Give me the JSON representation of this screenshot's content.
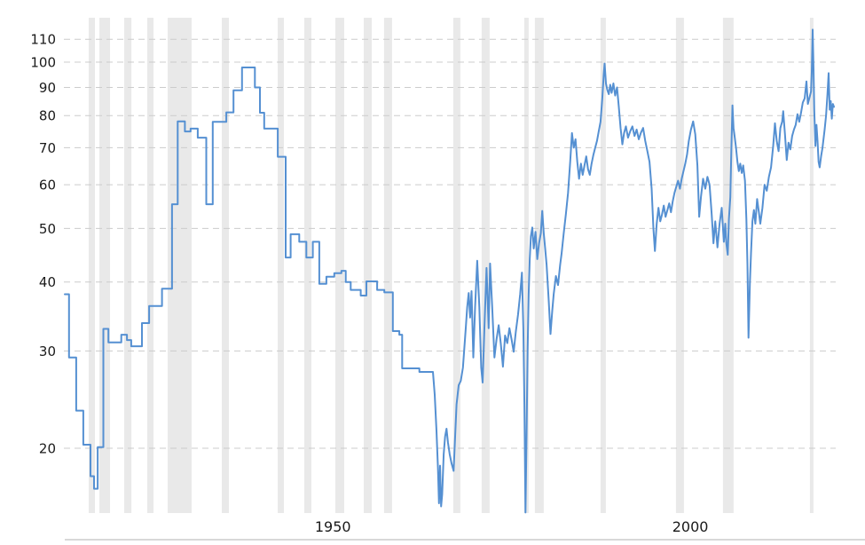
{
  "chart_data": {
    "type": "line",
    "title": "",
    "y_scale": "log",
    "x_range": [
      1915.6,
      2023.2
    ],
    "y_ticks": [
      110,
      100,
      90,
      80,
      70,
      60,
      50,
      40,
      30,
      20
    ],
    "x_tick_labels": [
      {
        "label": "1950",
        "year": 1950
      },
      {
        "label": "2000",
        "year": 2000
      }
    ],
    "grid": "horizontal-dashed",
    "legend": "none",
    "style": {
      "line_color": "#5590d2",
      "recession_band_color": "#e9e9e9",
      "gridline_color": "#cccccc",
      "axis_label_color": "#1a1a1a",
      "baseline_color": "#d8d8d8",
      "background": "#ffffff"
    },
    "recession_bands": [
      [
        1918.95,
        1919.82
      ],
      [
        1920.44,
        1921.93
      ],
      [
        1923.91,
        1924.91
      ],
      [
        1927.14,
        1928.01
      ],
      [
        1930.0,
        1933.35
      ],
      [
        1937.57,
        1938.56
      ],
      [
        1945.38,
        1946.25
      ],
      [
        1949.11,
        1950.1
      ],
      [
        1953.45,
        1954.69
      ],
      [
        1957.42,
        1958.54
      ],
      [
        1960.27,
        1961.39
      ],
      [
        1969.95,
        1970.94
      ],
      [
        1973.92,
        1975.04
      ],
      [
        1979.88,
        1980.5
      ],
      [
        1981.37,
        1982.61
      ],
      [
        1990.55,
        1991.3
      ],
      [
        2001.1,
        2002.22
      ],
      [
        2007.68,
        2009.17
      ],
      [
        2019.84,
        2020.34
      ]
    ],
    "series_step": [
      [
        1915.6,
        38.0
      ],
      [
        1916.2,
        29.2
      ],
      [
        1917.2,
        23.4
      ],
      [
        1918.2,
        20.3
      ],
      [
        1919.2,
        17.8
      ],
      [
        1919.7,
        16.9
      ],
      [
        1920.2,
        20.1
      ],
      [
        1921.0,
        32.9
      ],
      [
        1921.7,
        31.1
      ],
      [
        1923.5,
        32.1
      ],
      [
        1924.3,
        31.4
      ],
      [
        1924.9,
        30.6
      ],
      [
        1926.4,
        33.7
      ],
      [
        1927.4,
        36.2
      ],
      [
        1929.2,
        38.9
      ],
      [
        1930.6,
        55.3
      ],
      [
        1931.4,
        78.1
      ],
      [
        1932.4,
        74.9
      ],
      [
        1933.2,
        75.8
      ],
      [
        1934.2,
        73.0
      ],
      [
        1935.4,
        55.3
      ],
      [
        1936.3,
        78.0
      ],
      [
        1938.2,
        81.1
      ],
      [
        1939.2,
        88.9
      ],
      [
        1940.4,
        97.8
      ],
      [
        1942.2,
        90.0
      ],
      [
        1942.9,
        81.0
      ],
      [
        1943.5,
        75.8
      ],
      [
        1945.4,
        67.4
      ],
      [
        1946.5,
        44.3
      ],
      [
        1947.2,
        48.8
      ],
      [
        1948.4,
        47.3
      ],
      [
        1949.4,
        44.3
      ],
      [
        1950.3,
        47.3
      ],
      [
        1951.2,
        39.7
      ],
      [
        1952.2,
        40.9
      ],
      [
        1953.3,
        41.5
      ],
      [
        1954.3,
        41.9
      ],
      [
        1954.9,
        40.0
      ],
      [
        1955.6,
        38.7
      ],
      [
        1957.0,
        37.8
      ],
      [
        1957.8,
        40.1
      ],
      [
        1959.3,
        38.7
      ],
      [
        1960.3,
        38.3
      ],
      [
        1961.5,
        32.6
      ],
      [
        1962.4,
        32.1
      ],
      [
        1962.8,
        27.9
      ],
      [
        1965.2,
        27.5
      ]
    ],
    "series": [
      [
        1967.1,
        27.5
      ],
      [
        1967.35,
        25.0
      ],
      [
        1967.6,
        21.5
      ],
      [
        1967.8,
        18.5
      ],
      [
        1967.95,
        15.9
      ],
      [
        1968.1,
        18.6
      ],
      [
        1968.25,
        15.7
      ],
      [
        1968.4,
        16.5
      ],
      [
        1968.6,
        19.5
      ],
      [
        1968.8,
        21.0
      ],
      [
        1969.0,
        21.7
      ],
      [
        1969.2,
        20.5
      ],
      [
        1969.45,
        19.5
      ],
      [
        1969.7,
        18.8
      ],
      [
        1970.0,
        18.2
      ],
      [
        1970.4,
        24.0
      ],
      [
        1970.7,
        26.0
      ],
      [
        1971.0,
        26.5
      ],
      [
        1971.3,
        28.0
      ],
      [
        1971.7,
        33.0
      ],
      [
        1971.9,
        36.0
      ],
      [
        1972.1,
        38.2
      ],
      [
        1972.3,
        34.5
      ],
      [
        1972.5,
        38.5
      ],
      [
        1972.75,
        29.2
      ],
      [
        1973.0,
        36.0
      ],
      [
        1973.3,
        43.7
      ],
      [
        1973.6,
        36.0
      ],
      [
        1973.85,
        28.0
      ],
      [
        1974.05,
        26.3
      ],
      [
        1974.3,
        33.0
      ],
      [
        1974.6,
        42.4
      ],
      [
        1974.9,
        33.0
      ],
      [
        1975.1,
        43.2
      ],
      [
        1975.4,
        36.0
      ],
      [
        1975.7,
        29.2
      ],
      [
        1976.0,
        31.5
      ],
      [
        1976.3,
        33.4
      ],
      [
        1976.6,
        30.9
      ],
      [
        1976.9,
        28.1
      ],
      [
        1977.2,
        32.0
      ],
      [
        1977.5,
        31.0
      ],
      [
        1977.8,
        33.0
      ],
      [
        1978.1,
        31.5
      ],
      [
        1978.4,
        29.9
      ],
      [
        1978.7,
        32.5
      ],
      [
        1979.0,
        34.9
      ],
      [
        1979.3,
        38.0
      ],
      [
        1979.55,
        41.6
      ],
      [
        1979.75,
        33.0
      ],
      [
        1979.9,
        24.0
      ],
      [
        1980.05,
        15.3
      ],
      [
        1980.2,
        21.0
      ],
      [
        1980.35,
        30.0
      ],
      [
        1980.5,
        38.0
      ],
      [
        1980.65,
        44.0
      ],
      [
        1980.8,
        48.4
      ],
      [
        1981.0,
        50.2
      ],
      [
        1981.2,
        46.0
      ],
      [
        1981.45,
        49.3
      ],
      [
        1981.7,
        44.0
      ],
      [
        1981.95,
        47.0
      ],
      [
        1982.2,
        49.0
      ],
      [
        1982.4,
        53.8
      ],
      [
        1982.6,
        49.0
      ],
      [
        1982.8,
        46.0
      ],
      [
        1983.0,
        43.0
      ],
      [
        1983.3,
        37.0
      ],
      [
        1983.55,
        32.2
      ],
      [
        1983.8,
        35.5
      ],
      [
        1984.0,
        38.0
      ],
      [
        1984.3,
        41.0
      ],
      [
        1984.6,
        39.5
      ],
      [
        1984.9,
        43.0
      ],
      [
        1985.1,
        45.0
      ],
      [
        1985.4,
        49.0
      ],
      [
        1985.7,
        53.0
      ],
      [
        1986.0,
        58.0
      ],
      [
        1986.3,
        66.0
      ],
      [
        1986.55,
        74.4
      ],
      [
        1986.8,
        70.0
      ],
      [
        1987.05,
        72.5
      ],
      [
        1987.3,
        66.0
      ],
      [
        1987.55,
        61.5
      ],
      [
        1987.8,
        65.5
      ],
      [
        1988.05,
        62.5
      ],
      [
        1988.3,
        65.0
      ],
      [
        1988.55,
        67.5
      ],
      [
        1988.8,
        64.0
      ],
      [
        1989.05,
        62.5
      ],
      [
        1989.3,
        65.5
      ],
      [
        1989.55,
        68.0
      ],
      [
        1989.8,
        70.0
      ],
      [
        1990.05,
        72.0
      ],
      [
        1990.3,
        75.0
      ],
      [
        1990.55,
        78.0
      ],
      [
        1990.8,
        86.0
      ],
      [
        1991.0,
        95.0
      ],
      [
        1991.12,
        99.4
      ],
      [
        1991.3,
        91.5
      ],
      [
        1991.5,
        89.0
      ],
      [
        1991.7,
        87.5
      ],
      [
        1991.9,
        91.0
      ],
      [
        1992.1,
        88.0
      ],
      [
        1992.35,
        91.5
      ],
      [
        1992.6,
        87.0
      ],
      [
        1992.85,
        90.0
      ],
      [
        1993.1,
        83.0
      ],
      [
        1993.35,
        76.0
      ],
      [
        1993.6,
        71.0
      ],
      [
        1993.85,
        74.5
      ],
      [
        1994.1,
        76.5
      ],
      [
        1994.4,
        73.0
      ],
      [
        1994.7,
        75.0
      ],
      [
        1995.0,
        76.5
      ],
      [
        1995.3,
        73.5
      ],
      [
        1995.6,
        75.5
      ],
      [
        1995.9,
        72.5
      ],
      [
        1996.2,
        74.5
      ],
      [
        1996.5,
        76.0
      ],
      [
        1996.8,
        72.0
      ],
      [
        1997.1,
        69.0
      ],
      [
        1997.4,
        66.0
      ],
      [
        1997.7,
        59.0
      ],
      [
        1997.95,
        50.0
      ],
      [
        1998.15,
        45.5
      ],
      [
        1998.4,
        51.0
      ],
      [
        1998.65,
        54.5
      ],
      [
        1998.9,
        51.5
      ],
      [
        1999.15,
        53.0
      ],
      [
        1999.4,
        55.0
      ],
      [
        1999.65,
        52.5
      ],
      [
        1999.9,
        54.0
      ],
      [
        2000.15,
        55.5
      ],
      [
        2000.4,
        53.5
      ],
      [
        2000.65,
        56.0
      ],
      [
        2000.9,
        58.0
      ],
      [
        2001.15,
        59.5
      ],
      [
        2001.4,
        61.0
      ],
      [
        2001.65,
        59.0
      ],
      [
        2001.9,
        61.5
      ],
      [
        2002.15,
        63.5
      ],
      [
        2002.4,
        65.5
      ],
      [
        2002.65,
        68.0
      ],
      [
        2002.9,
        72.0
      ],
      [
        2003.2,
        75.5
      ],
      [
        2003.5,
        78.1
      ],
      [
        2003.8,
        74.0
      ],
      [
        2004.1,
        65.0
      ],
      [
        2004.35,
        52.5
      ],
      [
        2004.6,
        57.0
      ],
      [
        2004.9,
        61.5
      ],
      [
        2005.2,
        59.0
      ],
      [
        2005.5,
        62.0
      ],
      [
        2005.8,
        60.0
      ],
      [
        2006.1,
        53.0
      ],
      [
        2006.35,
        47.0
      ],
      [
        2006.6,
        51.5
      ],
      [
        2006.9,
        46.2
      ],
      [
        2007.2,
        51.0
      ],
      [
        2007.5,
        54.5
      ],
      [
        2007.8,
        47.3
      ],
      [
        2008.0,
        51.0
      ],
      [
        2008.15,
        47.0
      ],
      [
        2008.35,
        44.8
      ],
      [
        2008.5,
        52.0
      ],
      [
        2008.7,
        57.0
      ],
      [
        2008.85,
        70.0
      ],
      [
        2009.0,
        83.5
      ],
      [
        2009.15,
        76.0
      ],
      [
        2009.3,
        73.5
      ],
      [
        2009.5,
        70.0
      ],
      [
        2009.7,
        66.0
      ],
      [
        2009.9,
        63.5
      ],
      [
        2010.1,
        65.5
      ],
      [
        2010.3,
        63.0
      ],
      [
        2010.5,
        65.0
      ],
      [
        2010.75,
        61.0
      ],
      [
        2010.95,
        52.0
      ],
      [
        2011.1,
        43.0
      ],
      [
        2011.25,
        31.7
      ],
      [
        2011.45,
        40.0
      ],
      [
        2011.6,
        45.0
      ],
      [
        2011.8,
        51.5
      ],
      [
        2012.0,
        54.0
      ],
      [
        2012.2,
        51.0
      ],
      [
        2012.45,
        56.5
      ],
      [
        2012.7,
        53.5
      ],
      [
        2012.9,
        51.0
      ],
      [
        2013.2,
        54.5
      ],
      [
        2013.5,
        60.0
      ],
      [
        2013.8,
        58.5
      ],
      [
        2014.1,
        62.0
      ],
      [
        2014.4,
        64.5
      ],
      [
        2014.7,
        70.5
      ],
      [
        2014.95,
        77.5
      ],
      [
        2015.2,
        72.0
      ],
      [
        2015.45,
        69.0
      ],
      [
        2015.7,
        76.0
      ],
      [
        2015.95,
        78.0
      ],
      [
        2016.1,
        81.5
      ],
      [
        2016.35,
        74.0
      ],
      [
        2016.6,
        66.5
      ],
      [
        2016.85,
        71.5
      ],
      [
        2017.1,
        69.5
      ],
      [
        2017.35,
        73.5
      ],
      [
        2017.6,
        75.5
      ],
      [
        2017.85,
        77.0
      ],
      [
        2018.1,
        80.5
      ],
      [
        2018.35,
        78.0
      ],
      [
        2018.6,
        81.0
      ],
      [
        2018.85,
        84.5
      ],
      [
        2019.1,
        86.0
      ],
      [
        2019.35,
        92.3
      ],
      [
        2019.55,
        84.0
      ],
      [
        2019.8,
        86.5
      ],
      [
        2020.0,
        88.5
      ],
      [
        2020.1,
        96.0
      ],
      [
        2020.22,
        114.5
      ],
      [
        2020.35,
        97.0
      ],
      [
        2020.45,
        82.0
      ],
      [
        2020.6,
        70.5
      ],
      [
        2020.75,
        77.0
      ],
      [
        2020.9,
        72.0
      ],
      [
        2021.05,
        66.0
      ],
      [
        2021.2,
        64.5
      ],
      [
        2021.4,
        67.5
      ],
      [
        2021.6,
        70.0
      ],
      [
        2021.9,
        75.5
      ],
      [
        2022.1,
        80.0
      ],
      [
        2022.3,
        87.5
      ],
      [
        2022.45,
        95.5
      ],
      [
        2022.6,
        82.0
      ],
      [
        2022.75,
        85.0
      ],
      [
        2022.9,
        79.0
      ],
      [
        2023.05,
        84.0
      ],
      [
        2023.2,
        83.0
      ]
    ]
  }
}
